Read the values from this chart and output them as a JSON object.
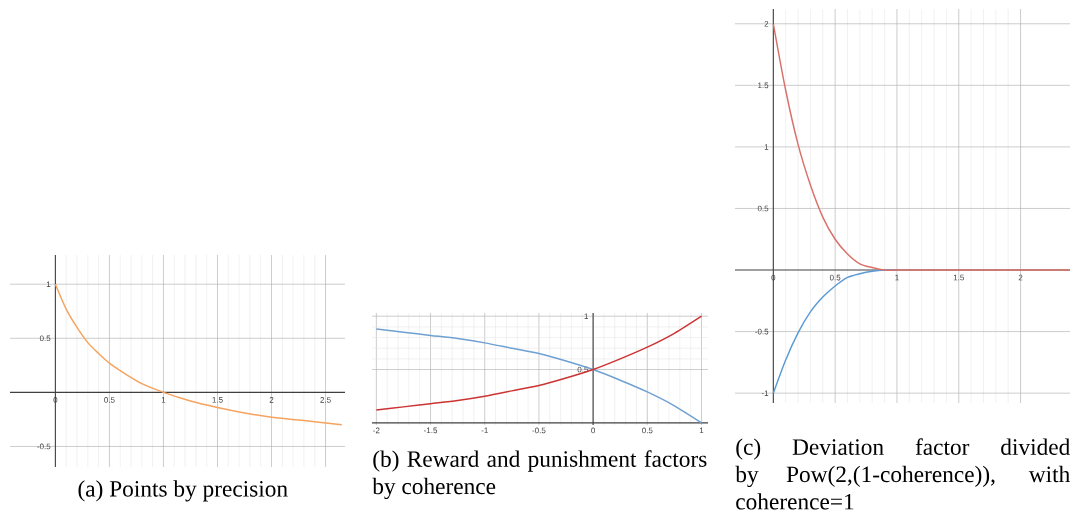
{
  "chart_data": [
    {
      "type": "line",
      "x": [
        0,
        0.1,
        0.2,
        0.3,
        0.4,
        0.5,
        0.6,
        0.8,
        1,
        1.25,
        1.5,
        1.75,
        2,
        2.3,
        2.65
      ],
      "series": [
        {
          "color": "#f5a35e",
          "values": [
            1,
            0.77,
            0.6,
            0.46,
            0.36,
            0.27,
            0.2,
            0.08,
            0,
            -0.08,
            -0.14,
            -0.19,
            -0.23,
            -0.26,
            -0.3
          ]
        }
      ],
      "xlim": [
        -0.42,
        2.68
      ],
      "ylim": [
        -0.69,
        1.27
      ],
      "xticks": [
        0,
        0.5,
        1,
        1.5,
        2,
        2.5
      ],
      "yticks": [
        -0.5,
        0.5,
        1
      ],
      "grid": true,
      "annotations": [
        "(a) Points by precision"
      ]
    },
    {
      "type": "line",
      "x": [
        -2,
        -1.75,
        -1.5,
        -1.25,
        -1,
        -0.75,
        -0.5,
        -0.25,
        0,
        0.25,
        0.5,
        0.75,
        1
      ],
      "series": [
        {
          "color": "#6fa0d2",
          "values": [
            0.88,
            0.85,
            0.82,
            0.79,
            0.75,
            0.7,
            0.65,
            0.58,
            0.5,
            0.4,
            0.29,
            0.16,
            0
          ]
        },
        {
          "color": "#cc3333",
          "values": [
            0.12,
            0.15,
            0.18,
            0.21,
            0.25,
            0.3,
            0.35,
            0.42,
            0.5,
            0.6,
            0.71,
            0.84,
            1
          ]
        }
      ],
      "xlim": [
        -2.04,
        1.06
      ],
      "ylim": [
        -0.02,
        1.03
      ],
      "xticks": [
        -2,
        -1.5,
        -1,
        -0.5,
        0,
        0.5,
        1
      ],
      "yticks": [
        0.5,
        1
      ],
      "grid": true,
      "annotations": [
        "(b) Reward and punishment factors by coherence"
      ]
    },
    {
      "type": "line",
      "x": [
        0,
        0.1,
        0.2,
        0.3,
        0.4,
        0.5,
        0.6,
        0.7,
        0.8,
        0.9,
        1,
        1.5,
        2,
        2.4
      ],
      "series": [
        {
          "color": "#5b9bd5",
          "values": [
            -1,
            -0.73,
            -0.51,
            -0.34,
            -0.22,
            -0.13,
            -0.06,
            -0.03,
            -0.01,
            0,
            0,
            null,
            null,
            null
          ]
        },
        {
          "color": "#d9706a",
          "values": [
            2,
            1.46,
            1.02,
            0.69,
            0.43,
            0.25,
            0.13,
            0.05,
            0.02,
            0,
            0,
            0,
            0,
            0
          ]
        }
      ],
      "xlim": [
        -0.31,
        2.4
      ],
      "ylim": [
        -1.08,
        2.12
      ],
      "xticks": [
        0,
        0.5,
        1,
        1.5,
        2
      ],
      "yticks": [
        -1,
        -0.5,
        0.5,
        1,
        1.5,
        2
      ],
      "grid": true,
      "annotations": [
        "(c) Deviation factor divided by Pow(2,(1-coherence)), with coherence=1"
      ]
    }
  ]
}
